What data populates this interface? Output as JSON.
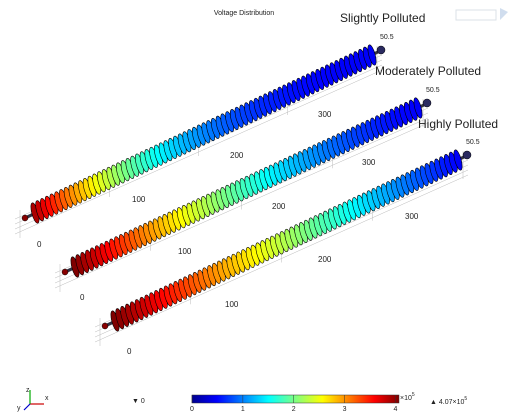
{
  "title": "Voltage Distribution",
  "panels": [
    {
      "label": "Slightly Polluted",
      "end_label": "50.5",
      "axis_ticks": [
        "0",
        "100",
        "200",
        "300"
      ]
    },
    {
      "label": "Moderately Polluted",
      "end_label": "50.5",
      "axis_ticks": [
        "0",
        "100",
        "200",
        "300"
      ]
    },
    {
      "label": "Highly Polluted",
      "end_label": "50.5",
      "axis_ticks": [
        "0",
        "100",
        "200",
        "300"
      ]
    }
  ],
  "colorbar": {
    "ticks": [
      "0",
      "1",
      "2",
      "3",
      "4"
    ],
    "exponent": "×10",
    "exponent_power": "5",
    "min_label": "▼ 0",
    "max_label": "▲ 4.07×10",
    "max_power": "5"
  },
  "triad": {
    "x": "x",
    "y": "y",
    "z": "z"
  }
}
